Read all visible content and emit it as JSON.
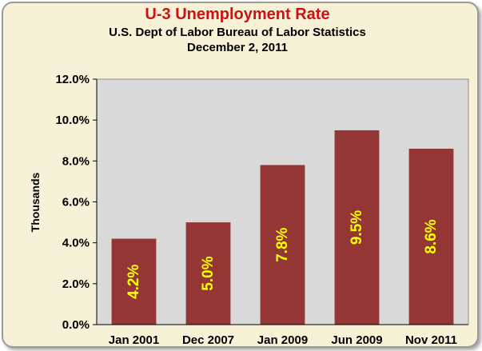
{
  "chart_data": {
    "type": "bar",
    "title": "U-3 Unemployment Rate",
    "subtitle_lines": [
      "U.S. Dept of Labor Bureau of Labor Statistics",
      "December 2, 2011"
    ],
    "xlabel": "",
    "ylabel": "Thousands",
    "categories": [
      "Jan 2001",
      "Dec 2007",
      "Jan 2009",
      "Jun 2009",
      "Nov 2011"
    ],
    "values": [
      4.2,
      5.0,
      7.8,
      9.5,
      8.6
    ],
    "data_labels": [
      "4.2%",
      "5.0%",
      "7.8%",
      "9.5%",
      "8.6%"
    ],
    "y_ticks": [
      "0.0%",
      "2.0%",
      "4.0%",
      "6.0%",
      "8.0%",
      "10.0%",
      "12.0%"
    ],
    "ylim": [
      0,
      12
    ],
    "grid": false,
    "legend": "none",
    "colors": {
      "title": "#cc1212",
      "bar": "#943634",
      "data_label": "#ffff00",
      "plot_background": "#d9d9d9",
      "chart_background": "#f6f1d7"
    }
  }
}
